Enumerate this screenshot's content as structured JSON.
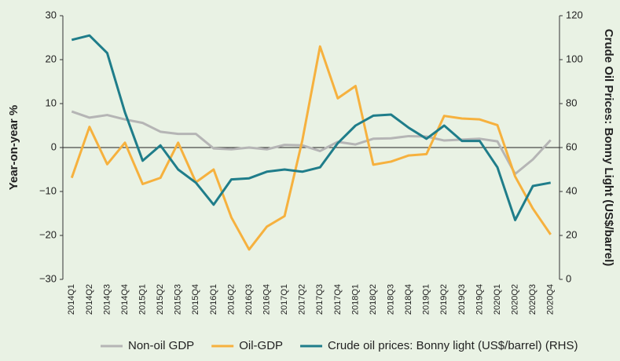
{
  "chart_data": {
    "type": "line",
    "categories": [
      "2014Q1",
      "2014Q2",
      "2014Q3",
      "2014Q4",
      "2015Q1",
      "2015Q2",
      "2015Q3",
      "2015Q4",
      "2016Q1",
      "2016Q2",
      "2016Q3",
      "2016Q4",
      "2017Q1",
      "2017Q2",
      "2017Q3",
      "2017Q4",
      "2018Q1",
      "2018Q2",
      "2018Q3",
      "2018Q4",
      "2019Q1",
      "2019Q2",
      "2019Q3",
      "2019Q4",
      "2020Q1",
      "2020Q2",
      "2020Q3",
      "2020Q4"
    ],
    "y_label": "Year-on-year %",
    "y2_label": "Crude Oil Prices: Bonny Light (US$/barrel)",
    "ylim": [
      -30,
      30
    ],
    "yticks": [
      {
        "value": -30,
        "label": "−30"
      },
      {
        "value": -20,
        "label": "−20"
      },
      {
        "value": -10,
        "label": "−10"
      },
      0,
      10,
      20,
      30
    ],
    "y2lim": [
      0,
      120
    ],
    "y2ticks": [
      0,
      20,
      40,
      60,
      80,
      100,
      120
    ],
    "legend": "bottom",
    "series": [
      {
        "name": "Non-oil GDP",
        "color": "#b5b5b5",
        "values": [
          8.2,
          6.8,
          7.4,
          6.4,
          5.6,
          3.6,
          3.1,
          3.1,
          -0.2,
          -0.4,
          0.0,
          -0.4,
          0.6,
          0.5,
          -0.8,
          1.3,
          0.7,
          2.0,
          2.1,
          2.6,
          2.5,
          1.6,
          1.8,
          2.0,
          1.4,
          -6.0,
          -2.7,
          1.7
        ]
      },
      {
        "name": "Oil-GDP",
        "color": "#f6b13e",
        "values": [
          -6.9,
          4.7,
          -3.8,
          1.1,
          -8.3,
          -6.9,
          1.1,
          -7.9,
          -5.0,
          -15.9,
          -23.2,
          -18.0,
          -15.6,
          1.6,
          23.0,
          11.2,
          14.0,
          -3.9,
          -3.2,
          -1.8,
          -1.5,
          7.2,
          6.6,
          6.4,
          5.1,
          -6.6,
          -13.9,
          -19.8
        ]
      },
      {
        "name": "Crude oil prices: Bonny light (US$/barrel) (RHS)",
        "color": "#1f7d8a",
        "axis": "y2",
        "values": [
          109,
          111,
          103,
          76,
          54,
          61,
          50,
          44,
          34,
          45.5,
          46,
          49,
          50,
          49,
          51,
          62,
          70,
          74.5,
          75,
          69,
          64,
          70,
          63,
          63,
          51,
          27,
          42.5,
          44
        ]
      }
    ]
  }
}
